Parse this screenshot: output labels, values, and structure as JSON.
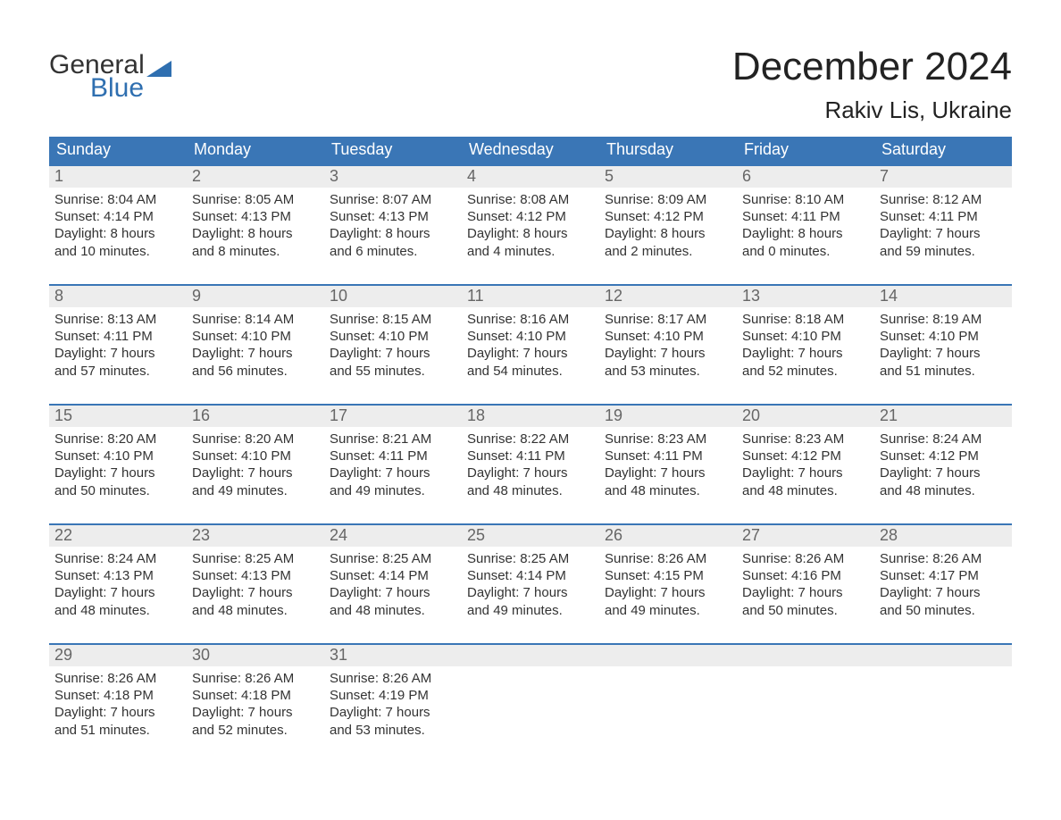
{
  "logo": {
    "word1": "General",
    "word2": "Blue"
  },
  "title": "December 2024",
  "location": "Rakiv Lis, Ukraine",
  "colors": {
    "header_bg": "#3a76b6",
    "header_text": "#ffffff",
    "daynum_bg": "#ededed",
    "daynum_text": "#666666",
    "body_text": "#333333",
    "accent": "#2f6fb0",
    "page_bg": "#ffffff"
  },
  "typography": {
    "title_fontsize": 44,
    "location_fontsize": 26,
    "header_fontsize": 18,
    "body_fontsize": 15,
    "logo_fontsize": 30
  },
  "day_headers": [
    "Sunday",
    "Monday",
    "Tuesday",
    "Wednesday",
    "Thursday",
    "Friday",
    "Saturday"
  ],
  "weeks": [
    [
      {
        "n": "1",
        "sr": "Sunrise: 8:04 AM",
        "ss": "Sunset: 4:14 PM",
        "d1": "Daylight: 8 hours",
        "d2": "and 10 minutes."
      },
      {
        "n": "2",
        "sr": "Sunrise: 8:05 AM",
        "ss": "Sunset: 4:13 PM",
        "d1": "Daylight: 8 hours",
        "d2": "and 8 minutes."
      },
      {
        "n": "3",
        "sr": "Sunrise: 8:07 AM",
        "ss": "Sunset: 4:13 PM",
        "d1": "Daylight: 8 hours",
        "d2": "and 6 minutes."
      },
      {
        "n": "4",
        "sr": "Sunrise: 8:08 AM",
        "ss": "Sunset: 4:12 PM",
        "d1": "Daylight: 8 hours",
        "d2": "and 4 minutes."
      },
      {
        "n": "5",
        "sr": "Sunrise: 8:09 AM",
        "ss": "Sunset: 4:12 PM",
        "d1": "Daylight: 8 hours",
        "d2": "and 2 minutes."
      },
      {
        "n": "6",
        "sr": "Sunrise: 8:10 AM",
        "ss": "Sunset: 4:11 PM",
        "d1": "Daylight: 8 hours",
        "d2": "and 0 minutes."
      },
      {
        "n": "7",
        "sr": "Sunrise: 8:12 AM",
        "ss": "Sunset: 4:11 PM",
        "d1": "Daylight: 7 hours",
        "d2": "and 59 minutes."
      }
    ],
    [
      {
        "n": "8",
        "sr": "Sunrise: 8:13 AM",
        "ss": "Sunset: 4:11 PM",
        "d1": "Daylight: 7 hours",
        "d2": "and 57 minutes."
      },
      {
        "n": "9",
        "sr": "Sunrise: 8:14 AM",
        "ss": "Sunset: 4:10 PM",
        "d1": "Daylight: 7 hours",
        "d2": "and 56 minutes."
      },
      {
        "n": "10",
        "sr": "Sunrise: 8:15 AM",
        "ss": "Sunset: 4:10 PM",
        "d1": "Daylight: 7 hours",
        "d2": "and 55 minutes."
      },
      {
        "n": "11",
        "sr": "Sunrise: 8:16 AM",
        "ss": "Sunset: 4:10 PM",
        "d1": "Daylight: 7 hours",
        "d2": "and 54 minutes."
      },
      {
        "n": "12",
        "sr": "Sunrise: 8:17 AM",
        "ss": "Sunset: 4:10 PM",
        "d1": "Daylight: 7 hours",
        "d2": "and 53 minutes."
      },
      {
        "n": "13",
        "sr": "Sunrise: 8:18 AM",
        "ss": "Sunset: 4:10 PM",
        "d1": "Daylight: 7 hours",
        "d2": "and 52 minutes."
      },
      {
        "n": "14",
        "sr": "Sunrise: 8:19 AM",
        "ss": "Sunset: 4:10 PM",
        "d1": "Daylight: 7 hours",
        "d2": "and 51 minutes."
      }
    ],
    [
      {
        "n": "15",
        "sr": "Sunrise: 8:20 AM",
        "ss": "Sunset: 4:10 PM",
        "d1": "Daylight: 7 hours",
        "d2": "and 50 minutes."
      },
      {
        "n": "16",
        "sr": "Sunrise: 8:20 AM",
        "ss": "Sunset: 4:10 PM",
        "d1": "Daylight: 7 hours",
        "d2": "and 49 minutes."
      },
      {
        "n": "17",
        "sr": "Sunrise: 8:21 AM",
        "ss": "Sunset: 4:11 PM",
        "d1": "Daylight: 7 hours",
        "d2": "and 49 minutes."
      },
      {
        "n": "18",
        "sr": "Sunrise: 8:22 AM",
        "ss": "Sunset: 4:11 PM",
        "d1": "Daylight: 7 hours",
        "d2": "and 48 minutes."
      },
      {
        "n": "19",
        "sr": "Sunrise: 8:23 AM",
        "ss": "Sunset: 4:11 PM",
        "d1": "Daylight: 7 hours",
        "d2": "and 48 minutes."
      },
      {
        "n": "20",
        "sr": "Sunrise: 8:23 AM",
        "ss": "Sunset: 4:12 PM",
        "d1": "Daylight: 7 hours",
        "d2": "and 48 minutes."
      },
      {
        "n": "21",
        "sr": "Sunrise: 8:24 AM",
        "ss": "Sunset: 4:12 PM",
        "d1": "Daylight: 7 hours",
        "d2": "and 48 minutes."
      }
    ],
    [
      {
        "n": "22",
        "sr": "Sunrise: 8:24 AM",
        "ss": "Sunset: 4:13 PM",
        "d1": "Daylight: 7 hours",
        "d2": "and 48 minutes."
      },
      {
        "n": "23",
        "sr": "Sunrise: 8:25 AM",
        "ss": "Sunset: 4:13 PM",
        "d1": "Daylight: 7 hours",
        "d2": "and 48 minutes."
      },
      {
        "n": "24",
        "sr": "Sunrise: 8:25 AM",
        "ss": "Sunset: 4:14 PM",
        "d1": "Daylight: 7 hours",
        "d2": "and 48 minutes."
      },
      {
        "n": "25",
        "sr": "Sunrise: 8:25 AM",
        "ss": "Sunset: 4:14 PM",
        "d1": "Daylight: 7 hours",
        "d2": "and 49 minutes."
      },
      {
        "n": "26",
        "sr": "Sunrise: 8:26 AM",
        "ss": "Sunset: 4:15 PM",
        "d1": "Daylight: 7 hours",
        "d2": "and 49 minutes."
      },
      {
        "n": "27",
        "sr": "Sunrise: 8:26 AM",
        "ss": "Sunset: 4:16 PM",
        "d1": "Daylight: 7 hours",
        "d2": "and 50 minutes."
      },
      {
        "n": "28",
        "sr": "Sunrise: 8:26 AM",
        "ss": "Sunset: 4:17 PM",
        "d1": "Daylight: 7 hours",
        "d2": "and 50 minutes."
      }
    ],
    [
      {
        "n": "29",
        "sr": "Sunrise: 8:26 AM",
        "ss": "Sunset: 4:18 PM",
        "d1": "Daylight: 7 hours",
        "d2": "and 51 minutes."
      },
      {
        "n": "30",
        "sr": "Sunrise: 8:26 AM",
        "ss": "Sunset: 4:18 PM",
        "d1": "Daylight: 7 hours",
        "d2": "and 52 minutes."
      },
      {
        "n": "31",
        "sr": "Sunrise: 8:26 AM",
        "ss": "Sunset: 4:19 PM",
        "d1": "Daylight: 7 hours",
        "d2": "and 53 minutes."
      },
      null,
      null,
      null,
      null
    ]
  ]
}
